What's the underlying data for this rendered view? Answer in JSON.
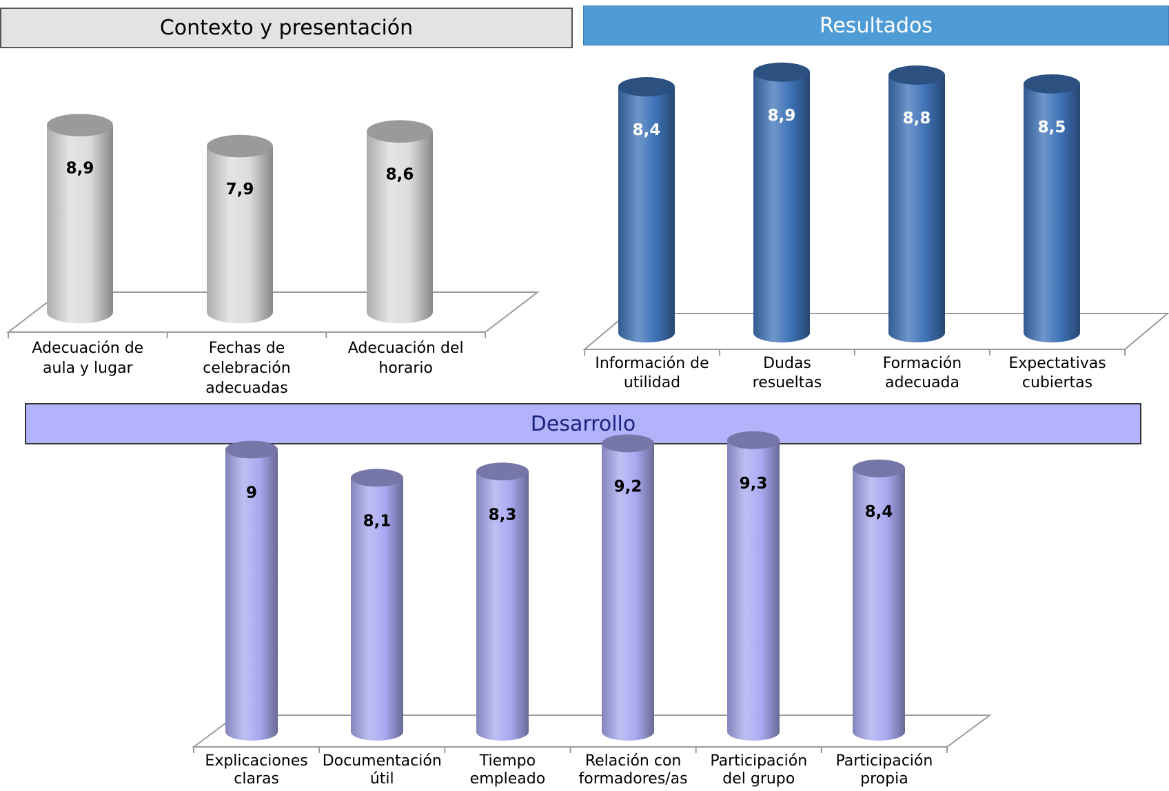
{
  "colors": {
    "contexto_bar": "#dcdcdc",
    "resultados_bar": "#3f73b8",
    "desarrollo_bar": "#a9a9f2",
    "resultados_banner": "#4f9bd6",
    "desarrollo_banner": "#b3b3fb"
  },
  "sections": {
    "contexto": {
      "title": "Contexto y presentación"
    },
    "resultados": {
      "title": "Resultados"
    },
    "desarrollo": {
      "title": "Desarrollo"
    }
  },
  "chart_data": [
    {
      "type": "bar",
      "style": "3d-cylinder",
      "title": "Contexto y presentación",
      "categories": [
        "Adecuación de aula y lugar",
        "Fechas de celebración adecuadas",
        "Adecuación del horario"
      ],
      "values": [
        8.9,
        7.9,
        8.6
      ],
      "data_labels": [
        "8,9",
        "7,9",
        "8,6"
      ],
      "ylim": [
        0,
        10
      ],
      "grid": false
    },
    {
      "type": "bar",
      "style": "3d-cylinder",
      "title": "Resultados",
      "categories": [
        "Información de utilidad",
        "Dudas resueltas",
        "Formación adecuada",
        "Expectativas cubiertas"
      ],
      "values": [
        8.4,
        8.9,
        8.8,
        8.5
      ],
      "data_labels": [
        "8,4",
        "8,9",
        "8,8",
        "8,5"
      ],
      "ylim": [
        0,
        10
      ],
      "grid": false
    },
    {
      "type": "bar",
      "style": "3d-cylinder",
      "title": "Desarrollo",
      "categories": [
        "Explicaciones claras",
        "Documentación útil",
        "Tiempo empleado",
        "Relación con formadores/as",
        "Participación del grupo",
        "Participación propia"
      ],
      "values": [
        9,
        8.1,
        8.3,
        9.2,
        9.3,
        8.4
      ],
      "data_labels": [
        "9",
        "8,1",
        "8,3",
        "9,2",
        "9,3",
        "8,4"
      ],
      "ylim": [
        0,
        10
      ],
      "grid": false
    }
  ]
}
